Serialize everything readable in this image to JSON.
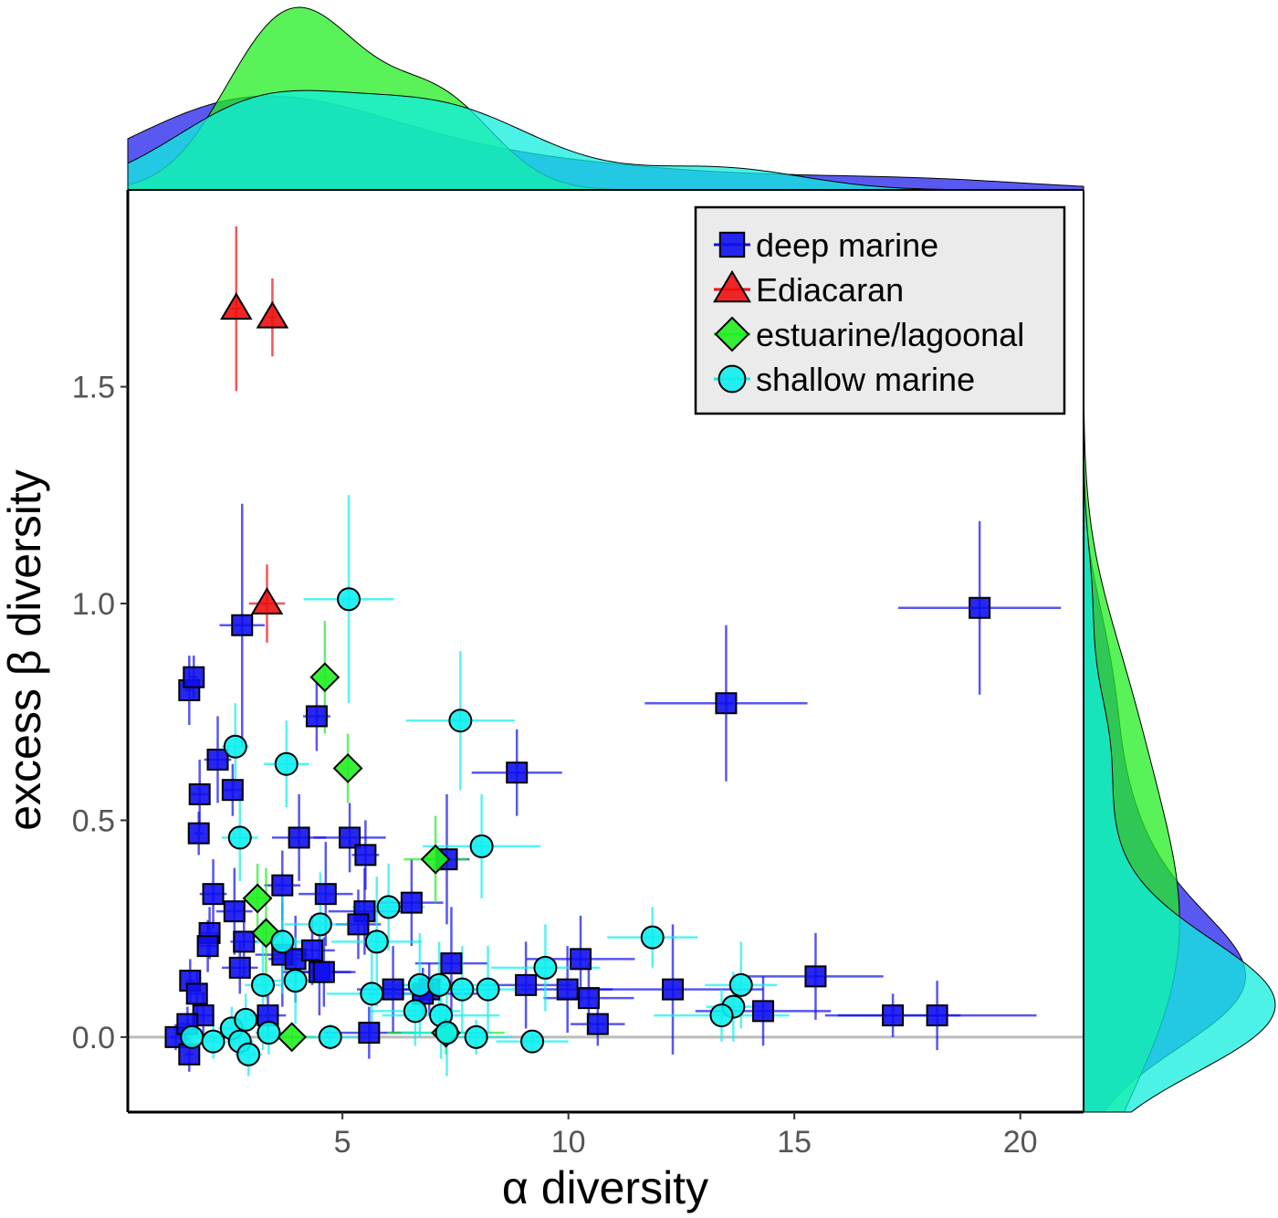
{
  "chart_data": {
    "type": "scatter",
    "xlabel": "α diversity",
    "ylabel": "excess β diversity",
    "xlim": [
      0.25,
      21.4
    ],
    "ylim": [
      -0.173,
      1.954
    ],
    "xticks": [
      5,
      10,
      15,
      20
    ],
    "xtick_labels": [
      "5",
      "10",
      "15",
      "20"
    ],
    "yticks": [
      0.0,
      0.5,
      1.0,
      1.5
    ],
    "ytick_labels": [
      "0.0",
      "0.5",
      "1.0",
      "1.5"
    ],
    "reference_line_y": 0,
    "grid": false,
    "legend_position": "top-right",
    "marginal_densities": [
      "top: α diversity",
      "right: excess β diversity"
    ],
    "point_format": "[x, y, x_error, y_error]",
    "series": [
      {
        "name": "deep marine",
        "marker": "square",
        "color": "#1010ee",
        "points": [
          [
            2.78,
            0.95,
            0.5,
            0.28
          ],
          [
            1.61,
            0.8,
            0.1,
            0.08
          ],
          [
            1.71,
            0.83,
            0.1,
            0.05
          ],
          [
            2.24,
            0.64,
            0.3,
            0.1
          ],
          [
            2.57,
            0.57,
            0.2,
            0.06
          ],
          [
            1.84,
            0.56,
            0.2,
            0.08
          ],
          [
            1.82,
            0.47,
            0.1,
            0.05
          ],
          [
            4.43,
            0.74,
            0.3,
            0.08
          ],
          [
            4.04,
            0.46,
            0.6,
            0.1
          ],
          [
            5.16,
            0.46,
            0.8,
            0.08
          ],
          [
            5.51,
            0.42,
            0.3,
            0.08
          ],
          [
            8.86,
            0.61,
            1.0,
            0.1
          ],
          [
            13.49,
            0.77,
            1.8,
            0.18
          ],
          [
            19.1,
            0.99,
            1.8,
            0.2
          ],
          [
            3.67,
            0.35,
            0.4,
            0.08
          ],
          [
            4.63,
            0.33,
            0.6,
            0.12
          ],
          [
            2.14,
            0.33,
            0.3,
            0.08
          ],
          [
            2.61,
            0.29,
            0.4,
            0.1
          ],
          [
            5.49,
            0.29,
            0.8,
            0.1
          ],
          [
            5.35,
            0.26,
            0.5,
            0.08
          ],
          [
            6.53,
            0.31,
            0.7,
            0.1
          ],
          [
            7.31,
            0.41,
            0.5,
            0.15
          ],
          [
            2.06,
            0.24,
            0.2,
            0.06
          ],
          [
            2.02,
            0.21,
            0.2,
            0.06
          ],
          [
            2.82,
            0.22,
            0.3,
            0.08
          ],
          [
            2.73,
            0.16,
            0.4,
            0.06
          ],
          [
            3.67,
            0.19,
            0.6,
            0.12
          ],
          [
            3.96,
            0.18,
            0.6,
            0.1
          ],
          [
            4.33,
            0.2,
            0.5,
            0.08
          ],
          [
            4.49,
            0.15,
            0.8,
            0.1
          ],
          [
            4.59,
            0.15,
            0.6,
            0.08
          ],
          [
            1.63,
            0.13,
            0.1,
            0.05
          ],
          [
            1.78,
            0.1,
            0.2,
            0.05
          ],
          [
            1.92,
            0.05,
            0.2,
            0.05
          ],
          [
            1.31,
            0.0,
            0.1,
            0.03
          ],
          [
            1.61,
            -0.04,
            0.1,
            0.04
          ],
          [
            1.57,
            0.03,
            0.2,
            0.04
          ],
          [
            3.35,
            0.05,
            0.4,
            0.05
          ],
          [
            5.59,
            0.01,
            1.0,
            0.06
          ],
          [
            6.12,
            0.11,
            0.8,
            0.1
          ],
          [
            6.92,
            0.11,
            1.0,
            0.06
          ],
          [
            7.41,
            0.17,
            0.8,
            0.13
          ],
          [
            9.06,
            0.12,
            1.0,
            0.1
          ],
          [
            9.98,
            0.11,
            1.0,
            0.1
          ],
          [
            10.27,
            0.18,
            1.2,
            0.1
          ],
          [
            10.45,
            0.09,
            1.0,
            0.08
          ],
          [
            10.65,
            0.03,
            0.6,
            0.05
          ],
          [
            12.31,
            0.11,
            2.0,
            0.15
          ],
          [
            14.31,
            0.06,
            1.5,
            0.08
          ],
          [
            15.47,
            0.14,
            1.5,
            0.1
          ],
          [
            17.18,
            0.05,
            1.5,
            0.05
          ],
          [
            18.16,
            0.05,
            2.2,
            0.08
          ],
          [
            6.78,
            0.1,
            1.2,
            0.06
          ]
        ]
      },
      {
        "name": "Ediacaran",
        "marker": "triangle",
        "color": "#ee1010",
        "points": [
          [
            2.65,
            1.68,
            0.1,
            0.19
          ],
          [
            3.45,
            1.66,
            0.1,
            0.09
          ],
          [
            3.33,
            1.0,
            0.4,
            0.09
          ]
        ]
      },
      {
        "name": "estuarine/lagoonal",
        "marker": "diamond",
        "color": "#22ee22",
        "points": [
          [
            4.61,
            0.83,
            0.1,
            0.13
          ],
          [
            5.12,
            0.62,
            0.1,
            0.08
          ],
          [
            7.06,
            0.41,
            0.7,
            0.1
          ],
          [
            3.12,
            0.32,
            0.2,
            0.08
          ],
          [
            3.31,
            0.24,
            0.1,
            0.15
          ],
          [
            3.88,
            0.0,
            0.5,
            0.02
          ],
          [
            7.29,
            0.01,
            1.3,
            0.05
          ]
        ]
      },
      {
        "name": "shallow marine",
        "marker": "circle",
        "color": "#10eeee",
        "points": [
          [
            5.14,
            1.01,
            1.0,
            0.24
          ],
          [
            7.61,
            0.73,
            1.2,
            0.16
          ],
          [
            2.63,
            0.67,
            0.3,
            0.1
          ],
          [
            3.76,
            0.63,
            0.5,
            0.1
          ],
          [
            2.73,
            0.46,
            0.4,
            0.1
          ],
          [
            8.08,
            0.44,
            1.3,
            0.12
          ],
          [
            6.02,
            0.3,
            0.8,
            0.1
          ],
          [
            4.51,
            0.26,
            0.8,
            0.12
          ],
          [
            3.67,
            0.22,
            0.6,
            0.12
          ],
          [
            5.76,
            0.22,
            1.0,
            0.15
          ],
          [
            11.86,
            0.23,
            1.0,
            0.07
          ],
          [
            3.24,
            0.12,
            0.4,
            0.15
          ],
          [
            3.96,
            0.13,
            0.6,
            0.1
          ],
          [
            9.49,
            0.16,
            1.2,
            0.1
          ],
          [
            13.82,
            0.12,
            0.8,
            0.1
          ],
          [
            13.65,
            0.07,
            0.6,
            0.08
          ],
          [
            13.39,
            0.05,
            1.5,
            0.06
          ],
          [
            5.65,
            0.1,
            1.0,
            0.1
          ],
          [
            6.71,
            0.12,
            0.8,
            0.12
          ],
          [
            7.14,
            0.12,
            1.2,
            0.1
          ],
          [
            7.65,
            0.11,
            0.8,
            0.1
          ],
          [
            8.22,
            0.11,
            1.0,
            0.1
          ],
          [
            6.61,
            0.06,
            1.0,
            0.08
          ],
          [
            7.18,
            0.05,
            1.3,
            0.1
          ],
          [
            1.67,
            0.0,
            0.2,
            0.03
          ],
          [
            2.14,
            -0.01,
            0.2,
            0.04
          ],
          [
            2.55,
            0.02,
            0.3,
            0.05
          ],
          [
            2.86,
            0.04,
            0.3,
            0.06
          ],
          [
            2.73,
            -0.01,
            0.3,
            0.05
          ],
          [
            2.92,
            -0.04,
            0.3,
            0.05
          ],
          [
            3.37,
            0.01,
            0.3,
            0.05
          ],
          [
            4.73,
            0.0,
            0.8,
            0.03
          ],
          [
            7.31,
            0.01,
            1.0,
            0.1
          ],
          [
            7.96,
            0.0,
            0.8,
            0.04
          ],
          [
            9.2,
            -0.01,
            0.8,
            0.02
          ]
        ]
      }
    ]
  }
}
